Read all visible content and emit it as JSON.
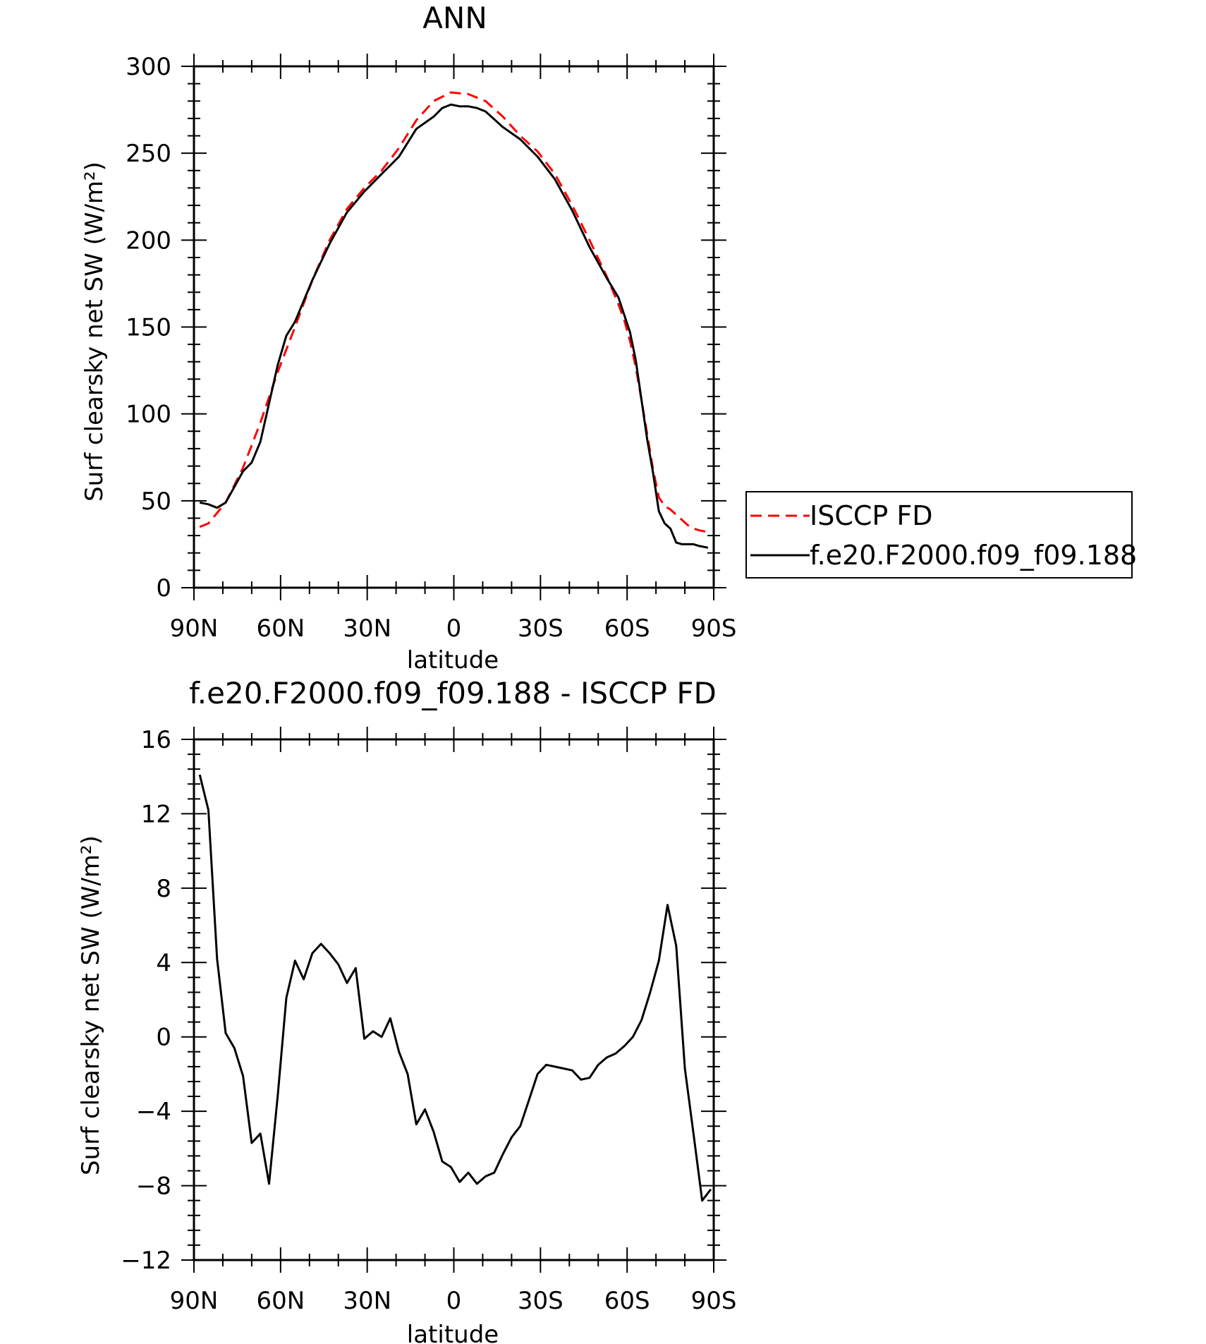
{
  "chart_data": [
    {
      "type": "line",
      "title": "ANN",
      "xlabel": "latitude",
      "ylabel": "Surf clearsky net SW (W/m²)",
      "x_tick_labels": [
        "90N",
        "60N",
        "30N",
        "0",
        "30S",
        "60S",
        "90S"
      ],
      "x_tick_values": [
        90,
        60,
        30,
        0,
        -30,
        -60,
        -90
      ],
      "xlim": [
        90,
        -90
      ],
      "y_tick_labels": [
        "0",
        "50",
        "100",
        "150",
        "200",
        "250",
        "300"
      ],
      "y_tick_values": [
        0,
        50,
        100,
        150,
        200,
        250,
        300
      ],
      "ylim": [
        0,
        300
      ],
      "legend": {
        "placement": "right",
        "entries": [
          "ISCCP FD",
          "f.e20.F2000.f09_f09.188"
        ]
      },
      "series": [
        {
          "name": "ISCCP FD",
          "color": "#ff0000",
          "style": "dashed",
          "x": [
            88,
            85,
            79,
            73,
            67,
            61,
            55,
            49,
            43,
            37,
            31,
            25,
            19,
            13,
            7,
            1,
            -5,
            -11,
            -17,
            -23,
            -29,
            -35,
            -41,
            -47,
            -53,
            -57,
            -59,
            -61,
            -63,
            -65,
            -67,
            -69,
            -71,
            -73,
            -75,
            -77,
            -79,
            -81,
            -83,
            -85,
            -88
          ],
          "values": [
            35,
            37,
            49,
            69,
            95,
            124,
            150,
            177,
            200,
            218,
            230,
            240,
            253,
            269,
            280,
            285,
            284,
            280,
            271,
            260,
            251,
            238,
            220,
            200,
            179,
            163,
            154,
            142,
            127,
            108,
            88,
            68,
            52,
            47,
            45,
            42,
            39,
            36,
            34,
            33,
            32
          ]
        },
        {
          "name": "f.e20.F2000.f09_f09.188",
          "color": "#000000",
          "style": "solid",
          "x": [
            88,
            85,
            82,
            79,
            73,
            70,
            67,
            61,
            58,
            55,
            49,
            43,
            37,
            31,
            25,
            22,
            19,
            13,
            7,
            4,
            1,
            -2,
            -5,
            -8,
            -11,
            -17,
            -23,
            -29,
            -35,
            -41,
            -47,
            -53,
            -57,
            -59,
            -61,
            -63,
            -65,
            -67,
            -69,
            -71,
            -73,
            -75,
            -77,
            -79,
            -81,
            -83,
            -85,
            -88
          ],
          "values": [
            49,
            48,
            46,
            49,
            67,
            72,
            84,
            128,
            145,
            153,
            177,
            198,
            216,
            228,
            238,
            243,
            248,
            264,
            271,
            276,
            278,
            277,
            277,
            276,
            274,
            265,
            258,
            248,
            235,
            217,
            196,
            178,
            167,
            157,
            147,
            131,
            108,
            85,
            66,
            44,
            37,
            34,
            26,
            25,
            25,
            25,
            24,
            23
          ]
        }
      ]
    },
    {
      "type": "line",
      "title": "f.e20.F2000.f09_f09.188 - ISCCP FD",
      "xlabel": "latitude",
      "ylabel": "Surf clearsky net SW (W/m²)",
      "x_tick_labels": [
        "90N",
        "60N",
        "30N",
        "0",
        "30S",
        "60S",
        "90S"
      ],
      "x_tick_values": [
        90,
        60,
        30,
        0,
        -30,
        -60,
        -90
      ],
      "xlim": [
        90,
        -90
      ],
      "y_tick_labels": [
        "16",
        "12",
        "8",
        "4",
        "0",
        "−4",
        "−8",
        "−12"
      ],
      "y_tick_values": [
        16,
        12,
        8,
        4,
        0,
        -4,
        -8,
        -12
      ],
      "ylim": [
        -12,
        16
      ],
      "series": [
        {
          "color": "#000000",
          "style": "solid",
          "x": [
            88,
            85,
            82,
            79,
            76,
            73,
            70,
            67,
            64,
            61,
            58,
            55,
            52,
            49,
            46,
            43,
            40,
            37,
            34,
            31,
            28,
            25,
            22,
            19,
            16,
            13,
            10,
            7,
            4,
            1,
            -2,
            -5,
            -8,
            -11,
            -14,
            -17,
            -20,
            -23,
            -26,
            -29,
            -32,
            -35,
            -38,
            -41,
            -44,
            -47,
            -50,
            -53,
            -56,
            -59,
            -62,
            -65,
            -68,
            -71,
            -74,
            -77,
            -80,
            -83,
            -86,
            -89
          ],
          "values": [
            14.1,
            12.2,
            4.2,
            0.2,
            -0.6,
            -2.1,
            -5.7,
            -5.2,
            -7.9,
            -3.2,
            2.1,
            4.1,
            3.1,
            4.5,
            5.0,
            4.5,
            3.9,
            2.9,
            3.7,
            -0.1,
            0.3,
            -0.0,
            1.0,
            -0.8,
            -2.0,
            -4.7,
            -3.9,
            -5.1,
            -6.7,
            -7.0,
            -7.8,
            -7.3,
            -7.9,
            -7.5,
            -7.3,
            -6.3,
            -5.4,
            -4.8,
            -3.4,
            -2.0,
            -1.5,
            -1.6,
            -1.7,
            -1.8,
            -2.3,
            -2.2,
            -1.5,
            -1.1,
            -0.9,
            -0.5,
            -0.0,
            0.9,
            2.4,
            4.1,
            7.1,
            4.9,
            -1.7,
            -5.2,
            -8.8,
            -8.2
          ]
        }
      ]
    }
  ]
}
